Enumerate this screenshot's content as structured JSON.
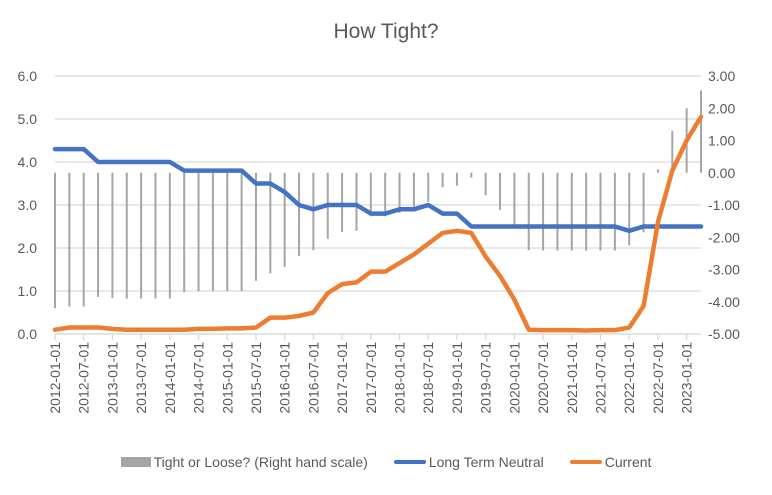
{
  "chart_data": {
    "type": "line",
    "title": "How Tight?",
    "x": [
      "2012-01-01",
      "2012-04-01",
      "2012-07-01",
      "2012-10-01",
      "2013-01-01",
      "2013-04-01",
      "2013-07-01",
      "2013-10-01",
      "2014-01-01",
      "2014-04-01",
      "2014-07-01",
      "2014-10-01",
      "2015-01-01",
      "2015-04-01",
      "2015-07-01",
      "2015-10-01",
      "2016-01-01",
      "2016-04-01",
      "2016-07-01",
      "2016-10-01",
      "2017-01-01",
      "2017-04-01",
      "2017-07-01",
      "2017-10-01",
      "2018-01-01",
      "2018-04-01",
      "2018-07-01",
      "2018-10-01",
      "2019-01-01",
      "2019-04-01",
      "2019-07-01",
      "2019-10-01",
      "2020-01-01",
      "2020-04-01",
      "2020-07-01",
      "2020-10-01",
      "2021-01-01",
      "2021-04-01",
      "2021-07-01",
      "2021-10-01",
      "2022-01-01",
      "2022-04-01",
      "2022-07-01",
      "2022-10-01",
      "2023-01-01",
      "2023-04-01"
    ],
    "x_tick_labels": [
      "2012-01-01",
      "2012-07-01",
      "2013-01-01",
      "2013-07-01",
      "2014-01-01",
      "2014-07-01",
      "2015-01-01",
      "2015-07-01",
      "2016-01-01",
      "2016-07-01",
      "2017-01-01",
      "2017-07-01",
      "2018-01-01",
      "2018-07-01",
      "2019-01-01",
      "2019-07-01",
      "2020-01-01",
      "2020-07-01",
      "2021-01-01",
      "2021-07-01",
      "2022-01-01",
      "2022-07-01",
      "2023-01-01"
    ],
    "series": [
      {
        "name": "Tight or Loose? (Right hand scale)",
        "type": "bar",
        "axis": "right",
        "color": "#a5a5a5",
        "values": [
          -4.2,
          -4.15,
          -4.15,
          -3.85,
          -3.88,
          -3.9,
          -3.9,
          -3.9,
          -3.9,
          -3.7,
          -3.68,
          -3.68,
          -3.67,
          -3.67,
          -3.35,
          -3.12,
          -2.92,
          -2.58,
          -2.4,
          -2.05,
          -1.84,
          -1.8,
          -1.35,
          -1.35,
          -1.25,
          -1.05,
          -0.9,
          -0.45,
          -0.4,
          -0.15,
          -0.7,
          -1.15,
          -1.7,
          -2.4,
          -2.41,
          -2.41,
          -2.41,
          -2.42,
          -2.41,
          -2.41,
          -2.25,
          -1.85,
          0.1,
          1.3,
          2.0,
          2.55
        ]
      },
      {
        "name": "Long Term Neutral",
        "type": "line",
        "axis": "left",
        "color": "#4472c4",
        "values": [
          4.3,
          4.3,
          4.3,
          4.0,
          4.0,
          4.0,
          4.0,
          4.0,
          4.0,
          3.8,
          3.8,
          3.8,
          3.8,
          3.8,
          3.5,
          3.5,
          3.3,
          3.0,
          2.9,
          3.0,
          3.0,
          3.0,
          2.8,
          2.8,
          2.9,
          2.9,
          3.0,
          2.8,
          2.8,
          2.5,
          2.5,
          2.5,
          2.5,
          2.5,
          2.5,
          2.5,
          2.5,
          2.5,
          2.5,
          2.5,
          2.4,
          2.5,
          2.5,
          2.5,
          2.5,
          2.5
        ]
      },
      {
        "name": "Current",
        "type": "line",
        "axis": "left",
        "color": "#ed7d31",
        "values": [
          0.1,
          0.15,
          0.15,
          0.15,
          0.12,
          0.1,
          0.1,
          0.1,
          0.1,
          0.1,
          0.12,
          0.12,
          0.13,
          0.13,
          0.15,
          0.38,
          0.38,
          0.42,
          0.5,
          0.95,
          1.16,
          1.2,
          1.45,
          1.45,
          1.65,
          1.85,
          2.1,
          2.35,
          2.4,
          2.35,
          1.8,
          1.35,
          0.8,
          0.1,
          0.09,
          0.09,
          0.09,
          0.08,
          0.09,
          0.09,
          0.15,
          0.65,
          2.6,
          3.8,
          4.5,
          5.05
        ]
      }
    ],
    "y_left": {
      "min": 0,
      "max": 6,
      "ticks": [
        "0.0",
        "1.0",
        "2.0",
        "3.0",
        "4.0",
        "5.0",
        "6.0"
      ]
    },
    "y_right": {
      "min": -5,
      "max": 3,
      "ticks": [
        "-5.00",
        "-4.00",
        "-3.00",
        "-2.00",
        "-1.00",
        "0.00",
        "1.00",
        "2.00",
        "3.00"
      ]
    },
    "grid": true,
    "legend_position": "bottom"
  }
}
